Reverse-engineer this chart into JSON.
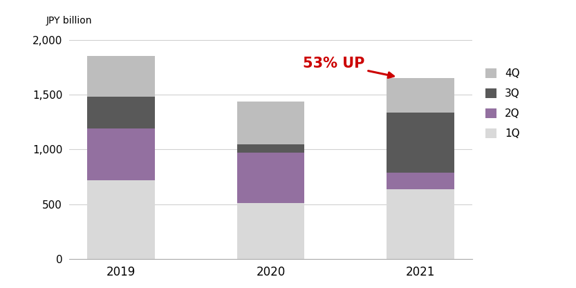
{
  "years": [
    "2019",
    "2020",
    "2021"
  ],
  "quarters": [
    "1Q",
    "2Q",
    "3Q",
    "4Q"
  ],
  "values": {
    "2019": [
      720,
      470,
      290,
      370
    ],
    "2020": [
      510,
      460,
      80,
      390
    ],
    "2021": [
      635,
      155,
      545,
      315
    ]
  },
  "colors": {
    "1Q": "#d9d9d9",
    "2Q": "#9370a0",
    "3Q": "#595959",
    "4Q": "#bdbdbd"
  },
  "ylabel": "JPY billion",
  "ylim": [
    0,
    2100
  ],
  "yticks": [
    0,
    500,
    1000,
    1500,
    2000
  ],
  "annotation_text": "53% UP",
  "annotation_color": "#cc0000",
  "bar_width": 0.45,
  "legend_labels": [
    "4Q",
    "3Q",
    "2Q",
    "1Q"
  ],
  "background_color": "#ffffff"
}
